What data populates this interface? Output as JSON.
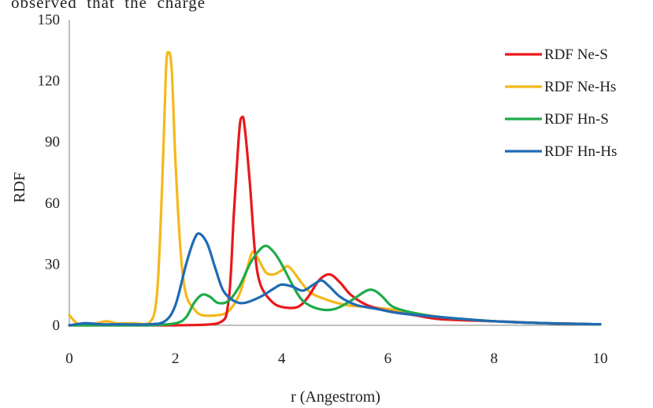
{
  "page": {
    "top_text": "observed  that  the  charge"
  },
  "chart_data": {
    "type": "line",
    "title": "",
    "xlabel": "r (Angestrom)",
    "ylabel": "RDF",
    "xlim": [
      0,
      10
    ],
    "ylim": [
      0,
      150
    ],
    "xticks": [
      0,
      2,
      4,
      6,
      8,
      10
    ],
    "yticks": [
      0,
      30,
      60,
      90,
      120,
      150
    ],
    "grid": false,
    "legend_position": "right",
    "series": [
      {
        "name": "RDF Ne-S",
        "color": "#e8191c",
        "points": [
          [
            0,
            0
          ],
          [
            1,
            0
          ],
          [
            2,
            0
          ],
          [
            2.8,
            1
          ],
          [
            3.0,
            12
          ],
          [
            3.1,
            55
          ],
          [
            3.2,
            95
          ],
          [
            3.25,
            102
          ],
          [
            3.3,
            98
          ],
          [
            3.4,
            70
          ],
          [
            3.5,
            35
          ],
          [
            3.6,
            20
          ],
          [
            3.8,
            12
          ],
          [
            4.0,
            9
          ],
          [
            4.3,
            9
          ],
          [
            4.5,
            14
          ],
          [
            4.7,
            22
          ],
          [
            4.9,
            25
          ],
          [
            5.1,
            21
          ],
          [
            5.3,
            15
          ],
          [
            5.6,
            10
          ],
          [
            6.0,
            7
          ],
          [
            6.5,
            5
          ],
          [
            7,
            3
          ],
          [
            8,
            2
          ],
          [
            9,
            1
          ],
          [
            10,
            0.5
          ]
        ]
      },
      {
        "name": "RDF Ne-Hs",
        "color": "#f5b81b",
        "points": [
          [
            0,
            5
          ],
          [
            0.1,
            2
          ],
          [
            0.2,
            0.5
          ],
          [
            0.5,
            1
          ],
          [
            0.7,
            2
          ],
          [
            0.9,
            1
          ],
          [
            1.2,
            1
          ],
          [
            1.5,
            1
          ],
          [
            1.65,
            15
          ],
          [
            1.75,
            70
          ],
          [
            1.82,
            125
          ],
          [
            1.87,
            134
          ],
          [
            1.93,
            125
          ],
          [
            2.0,
            80
          ],
          [
            2.1,
            35
          ],
          [
            2.2,
            15
          ],
          [
            2.35,
            8
          ],
          [
            2.5,
            5
          ],
          [
            2.8,
            5
          ],
          [
            3.0,
            7
          ],
          [
            3.2,
            15
          ],
          [
            3.35,
            28
          ],
          [
            3.45,
            36
          ],
          [
            3.55,
            33
          ],
          [
            3.7,
            26
          ],
          [
            3.85,
            25
          ],
          [
            4.0,
            27
          ],
          [
            4.1,
            29
          ],
          [
            4.2,
            27
          ],
          [
            4.5,
            17
          ],
          [
            4.8,
            13
          ],
          [
            5.2,
            10
          ],
          [
            5.6,
            9
          ],
          [
            6.0,
            8
          ],
          [
            6.5,
            6
          ],
          [
            7,
            4
          ],
          [
            8,
            2
          ],
          [
            9,
            1
          ],
          [
            10,
            0.5
          ]
        ]
      },
      {
        "name": "RDF Hn-S",
        "color": "#1faa4a",
        "points": [
          [
            0,
            0
          ],
          [
            0.5,
            0
          ],
          [
            1,
            0
          ],
          [
            1.5,
            0
          ],
          [
            2.0,
            1
          ],
          [
            2.2,
            4
          ],
          [
            2.35,
            11
          ],
          [
            2.5,
            15
          ],
          [
            2.65,
            14
          ],
          [
            2.8,
            11
          ],
          [
            3.0,
            12
          ],
          [
            3.2,
            19
          ],
          [
            3.4,
            30
          ],
          [
            3.55,
            36
          ],
          [
            3.7,
            39
          ],
          [
            3.85,
            36
          ],
          [
            4.0,
            30
          ],
          [
            4.2,
            20
          ],
          [
            4.4,
            12
          ],
          [
            4.7,
            8
          ],
          [
            5.0,
            8
          ],
          [
            5.3,
            12
          ],
          [
            5.6,
            17
          ],
          [
            5.75,
            17
          ],
          [
            5.9,
            14
          ],
          [
            6.1,
            9
          ],
          [
            6.5,
            6
          ],
          [
            7,
            4
          ],
          [
            8,
            2
          ],
          [
            9,
            1
          ],
          [
            10,
            0.5
          ]
        ]
      },
      {
        "name": "RDF Hn-Hs",
        "color": "#1f6bb5",
        "points": [
          [
            0,
            0
          ],
          [
            0.3,
            1
          ],
          [
            0.6,
            0.5
          ],
          [
            1,
            0.5
          ],
          [
            1.5,
            0.5
          ],
          [
            1.8,
            2
          ],
          [
            2.0,
            10
          ],
          [
            2.2,
            30
          ],
          [
            2.35,
            42
          ],
          [
            2.45,
            45
          ],
          [
            2.6,
            40
          ],
          [
            2.75,
            28
          ],
          [
            2.9,
            17
          ],
          [
            3.1,
            12
          ],
          [
            3.3,
            11
          ],
          [
            3.6,
            14
          ],
          [
            3.85,
            18
          ],
          [
            4.0,
            20
          ],
          [
            4.2,
            19
          ],
          [
            4.4,
            17
          ],
          [
            4.6,
            20
          ],
          [
            4.75,
            22
          ],
          [
            4.9,
            19
          ],
          [
            5.1,
            14
          ],
          [
            5.4,
            10
          ],
          [
            5.8,
            8
          ],
          [
            6.2,
            6
          ],
          [
            7,
            4
          ],
          [
            8,
            2
          ],
          [
            9,
            1
          ],
          [
            10,
            0.5
          ]
        ]
      }
    ]
  }
}
